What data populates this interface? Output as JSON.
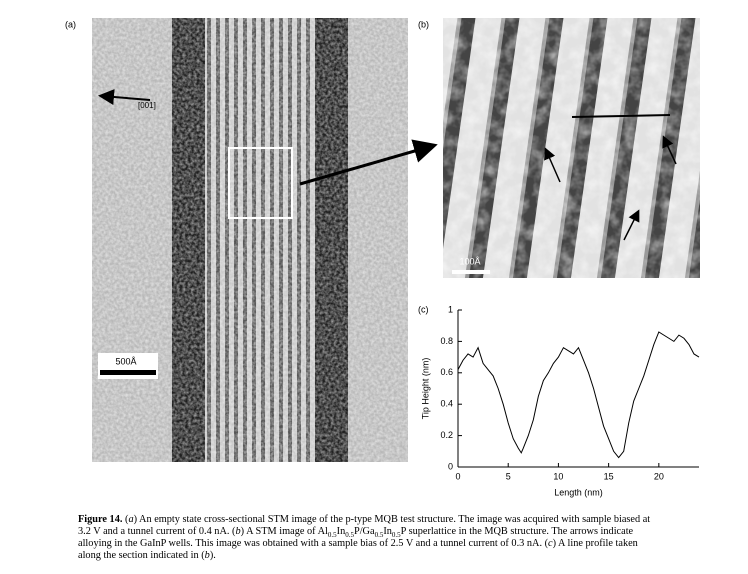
{
  "figure": {
    "panel_a": "(a)",
    "panel_b": "(b)",
    "panel_c": "(c)",
    "direction": "[001]",
    "scale_a": "500Å",
    "scale_b": "100Å"
  },
  "caption": {
    "lines": [
      [
        "Figure 14.",
        " (",
        "a",
        ") An empty state cross-sectional STM image of the p-type MQB test structure. The image was acquired with sample biased at"
      ],
      [
        "3.2 V and a tunnel current of 0.4 nA. (",
        "b",
        ") A STM image of Al",
        "0.5",
        "In",
        "0.5",
        "P/Ga",
        "0.5",
        "In",
        "0.5",
        "P superlattice in the MQB structure. The arrows indicate"
      ],
      [
        "alloying in the GaInP wells. This image was obtained with a sample bias of 2.5 V and a tunnel current of 0.3 nA. (",
        "c",
        ") A line profile taken"
      ],
      [
        "along the section indicated in (",
        "b",
        ")."
      ]
    ]
  },
  "chart_data": {
    "type": "line",
    "x_label": "Length (nm)",
    "y_label": "Tip Height (nm)",
    "color": "#000000",
    "x": [
      0,
      0.5,
      1,
      1.5,
      2,
      2.5,
      3,
      3.5,
      4,
      4.5,
      5,
      5.5,
      6,
      6.3,
      6.5,
      7,
      7.5,
      8,
      8.5,
      9,
      9.5,
      10,
      10.5,
      11,
      11.5,
      12,
      12.5,
      13,
      13.5,
      14,
      14.5,
      15,
      15.5,
      16,
      16.5,
      17,
      17.5,
      18,
      18.5,
      19,
      19.5,
      20,
      20.5,
      21,
      21.5,
      22,
      22.5,
      23,
      23.5,
      24
    ],
    "values": [
      0.62,
      0.68,
      0.72,
      0.7,
      0.76,
      0.66,
      0.62,
      0.58,
      0.5,
      0.4,
      0.28,
      0.18,
      0.12,
      0.09,
      0.12,
      0.2,
      0.3,
      0.45,
      0.55,
      0.6,
      0.66,
      0.7,
      0.76,
      0.74,
      0.72,
      0.76,
      0.68,
      0.6,
      0.5,
      0.38,
      0.26,
      0.18,
      0.1,
      0.06,
      0.1,
      0.28,
      0.42,
      0.5,
      0.58,
      0.68,
      0.78,
      0.86,
      0.84,
      0.82,
      0.8,
      0.84,
      0.82,
      0.78,
      0.72,
      0.7
    ],
    "xlim": [
      0,
      24
    ],
    "ylim": [
      0,
      1
    ],
    "xticks": [
      0,
      5,
      10,
      15,
      20
    ],
    "yticks": [
      0,
      0.2,
      0.4,
      0.6,
      0.8,
      1
    ]
  }
}
